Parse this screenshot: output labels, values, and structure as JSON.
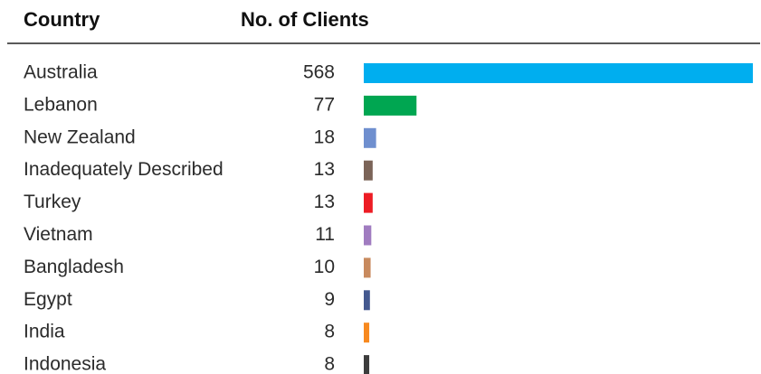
{
  "chart_data": {
    "type": "bar",
    "orientation": "horizontal",
    "headers": [
      "Country",
      "No. of Clients"
    ],
    "categories": [
      "Australia",
      "Lebanon",
      "New Zealand",
      "Inadequately Described",
      "Turkey",
      "Vietnam",
      "Bangladesh",
      "Egypt",
      "India",
      "Indonesia"
    ],
    "values": [
      568,
      77,
      18,
      13,
      13,
      11,
      10,
      9,
      8,
      8
    ],
    "colors": [
      "#00aeef",
      "#00a651",
      "#6f8fcf",
      "#7b6458",
      "#ed1c24",
      "#a07cc0",
      "#c88a5e",
      "#44598f",
      "#f7891f",
      "#3d3d3d"
    ]
  }
}
